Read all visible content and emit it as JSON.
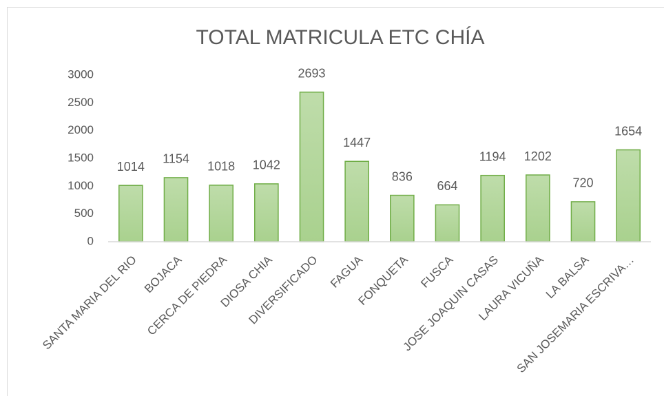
{
  "chart_data": {
    "type": "bar",
    "title": "TOTAL MATRICULA ETC CHÍA",
    "categories": [
      "SANTA MARIA DEL RIO",
      "BOJACA",
      "CERCA DE PIEDRA",
      "DIOSA CHIA",
      "DIVERSIFICADO",
      "FAGUA",
      "FONQUETA",
      "FUSCA",
      "JOSE JOAQUIN CASAS",
      "LAURA VICUÑA",
      "LA BALSA",
      "SAN JOSEMARIA ESCRIVA…"
    ],
    "values": [
      1014,
      1154,
      1018,
      1042,
      2693,
      1447,
      836,
      664,
      1194,
      1202,
      720,
      1654
    ],
    "color": "#a9d18e",
    "border_color": "#70ad47",
    "ylim": [
      0,
      3000
    ],
    "yticks": [
      0,
      500,
      1000,
      1500,
      2000,
      2500,
      3000
    ],
    "grid": false
  }
}
